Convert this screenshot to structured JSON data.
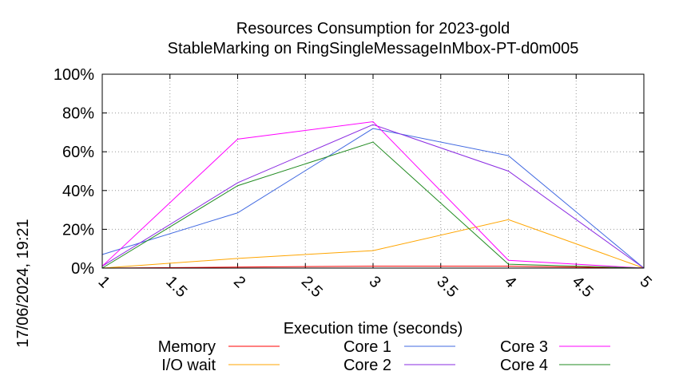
{
  "chart_data": {
    "type": "line",
    "title_line1": "Resources Consumption for 2023-gold",
    "title_line2": "StableMarking on RingSingleMessageInMbox-PT-d0m005",
    "xlabel": "Execution time (seconds)",
    "ylabel": "",
    "side_label": "17/06/2024, 19:21",
    "xlim": [
      1,
      5
    ],
    "ylim": [
      0,
      100
    ],
    "x_ticks": [
      "1",
      "1.5",
      "2",
      "2.5",
      "3",
      "3.5",
      "4",
      "4.5",
      "5"
    ],
    "y_ticks": [
      "0%",
      "20%",
      "40%",
      "60%",
      "80%",
      "100%"
    ],
    "grid": true,
    "legend_position": "bottom",
    "x": [
      1,
      2,
      3,
      4,
      5
    ],
    "series": [
      {
        "name": "Memory",
        "color": "#ff0000",
        "values": [
          0,
          0.5,
          1,
          1,
          0
        ]
      },
      {
        "name": "I/O wait",
        "color": "#ffa500",
        "values": [
          0,
          5,
          9,
          25,
          0
        ]
      },
      {
        "name": "Core 1",
        "color": "#4169e1",
        "values": [
          7,
          28.5,
          72,
          58,
          0
        ]
      },
      {
        "name": "Core 2",
        "color": "#8a2be2",
        "values": [
          1,
          44,
          74,
          50,
          0
        ]
      },
      {
        "name": "Core 3",
        "color": "#ff00ff",
        "values": [
          1,
          66.5,
          75.5,
          4,
          0
        ]
      },
      {
        "name": "Core 4",
        "color": "#228b22",
        "values": [
          0,
          42.5,
          65,
          2,
          0
        ]
      }
    ]
  }
}
